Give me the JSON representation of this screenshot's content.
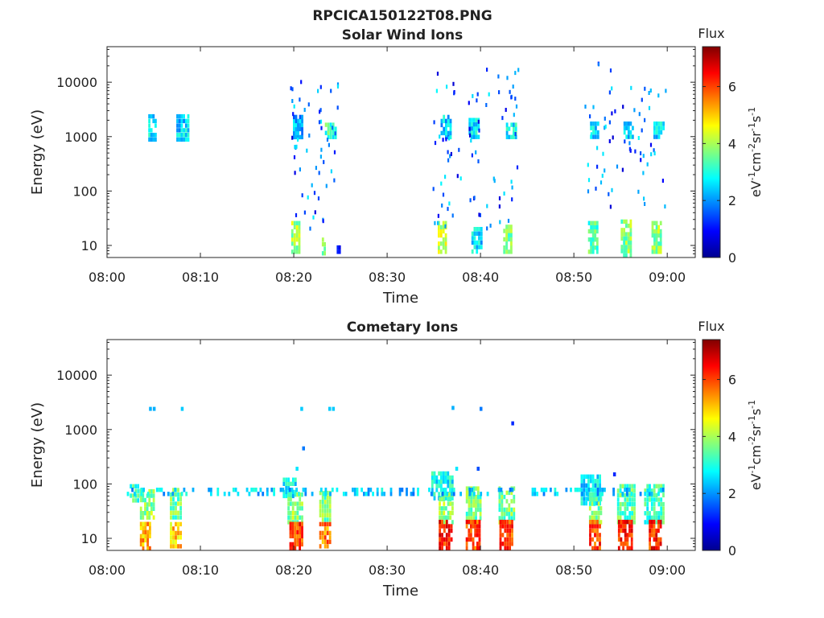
{
  "figure_title": "RPCICA150122T08.PNG",
  "chart_data": [
    {
      "type": "heatmap",
      "title": "Solar Wind Ions",
      "xlabel": "Time",
      "ylabel": "Energy (eV)",
      "y_scale": "log",
      "ylim": [
        6,
        45000
      ],
      "xlim": [
        0,
        63
      ],
      "x_ticks": [
        "08:00",
        "08:10",
        "08:20",
        "08:30",
        "08:40",
        "08:50",
        "09:00"
      ],
      "y_ticks": [
        "10",
        "100",
        "1000",
        "10000"
      ],
      "colorbar": {
        "title": "Flux",
        "unit_parts": [
          "eV",
          "-1",
          "cm",
          "-2",
          "sr",
          "-1",
          "s",
          "-1"
        ],
        "range": [
          0,
          7.4
        ],
        "ticks": [
          "0",
          "2",
          "4",
          "6"
        ]
      },
      "blobs": [
        {
          "t0": 4.3,
          "t1": 5.2,
          "e0": 800,
          "e1": 2600,
          "v": 2.5
        },
        {
          "t0": 7.3,
          "t1": 8.7,
          "e0": 800,
          "e1": 2600,
          "v": 2.5
        },
        {
          "t0": 19.8,
          "t1": 20.9,
          "e0": 900,
          "e1": 2500,
          "v": 2.2
        },
        {
          "t0": 23.2,
          "t1": 24.5,
          "e0": 900,
          "e1": 1800,
          "v": 3.2
        },
        {
          "t0": 35.6,
          "t1": 36.8,
          "e0": 900,
          "e1": 2500,
          "v": 2.4
        },
        {
          "t0": 38.6,
          "t1": 39.8,
          "e0": 900,
          "e1": 2200,
          "v": 2.6
        },
        {
          "t0": 42.6,
          "t1": 43.8,
          "e0": 900,
          "e1": 1800,
          "v": 2.8
        },
        {
          "t0": 51.6,
          "t1": 52.6,
          "e0": 900,
          "e1": 1900,
          "v": 2.6
        },
        {
          "t0": 55.2,
          "t1": 56.3,
          "e0": 900,
          "e1": 1900,
          "v": 2.6
        },
        {
          "t0": 58.4,
          "t1": 59.6,
          "e0": 900,
          "e1": 1900,
          "v": 2.6
        },
        {
          "t0": 19.6,
          "t1": 20.6,
          "e0": 7,
          "e1": 28,
          "v": 4.0
        },
        {
          "t0": 22.9,
          "t1": 23.3,
          "e0": 6.5,
          "e1": 14,
          "v": 3.5
        },
        {
          "t0": 24.5,
          "t1": 24.9,
          "e0": 7,
          "e1": 10,
          "v": 1.0
        },
        {
          "t0": 35.3,
          "t1": 36.3,
          "e0": 7,
          "e1": 28,
          "v": 4.2
        },
        {
          "t0": 38.9,
          "t1": 40.1,
          "e0": 7,
          "e1": 22,
          "v": 2.5
        },
        {
          "t0": 42.3,
          "t1": 43.3,
          "e0": 7,
          "e1": 24,
          "v": 3.6
        },
        {
          "t0": 51.4,
          "t1": 52.5,
          "e0": 7,
          "e1": 28,
          "v": 3.4
        },
        {
          "t0": 54.9,
          "t1": 56.1,
          "e0": 6,
          "e1": 30,
          "v": 3.8
        },
        {
          "t0": 58.2,
          "t1": 59.3,
          "e0": 7,
          "e1": 28,
          "v": 3.8
        }
      ],
      "scatter": [
        {
          "t0": 19.6,
          "t1": 24.8,
          "e0": 20,
          "e1": 12000,
          "n": 55
        },
        {
          "t0": 34.8,
          "t1": 44.0,
          "e0": 20,
          "e1": 21000,
          "n": 80
        },
        {
          "t0": 50.8,
          "t1": 59.8,
          "e0": 50,
          "e1": 22000,
          "n": 65
        }
      ]
    },
    {
      "type": "heatmap",
      "title": "Cometary Ions",
      "xlabel": "Time",
      "ylabel": "Energy (eV)",
      "y_scale": "log",
      "ylim": [
        6,
        45000
      ],
      "xlim": [
        0,
        63
      ],
      "x_ticks": [
        "08:00",
        "08:10",
        "08:20",
        "08:30",
        "08:40",
        "08:50",
        "09:00"
      ],
      "y_ticks": [
        "10",
        "100",
        "1000",
        "10000"
      ],
      "colorbar": {
        "title": "Flux",
        "unit_parts": [
          "eV",
          "-1",
          "cm",
          "-2",
          "sr",
          "-1",
          "s",
          "-1"
        ],
        "range": [
          0,
          7.4
        ],
        "ticks": [
          "0",
          "2",
          "4",
          "6"
        ]
      },
      "blobs": [
        {
          "t0": 2.3,
          "t1": 3.6,
          "e0": 45,
          "e1": 100,
          "v": 3.2
        },
        {
          "t0": 3.4,
          "t1": 5.0,
          "e0": 22,
          "e1": 80,
          "v": 3.8
        },
        {
          "t0": 3.4,
          "t1": 4.6,
          "e0": 6,
          "e1": 20,
          "v": 5.2
        },
        {
          "t0": 6.6,
          "t1": 7.9,
          "e0": 22,
          "e1": 85,
          "v": 3.6
        },
        {
          "t0": 6.6,
          "t1": 7.9,
          "e0": 6.5,
          "e1": 20,
          "v": 5.0
        },
        {
          "t0": 18.7,
          "t1": 20.2,
          "e0": 55,
          "e1": 130,
          "v": 2.8
        },
        {
          "t0": 19.2,
          "t1": 20.9,
          "e0": 18,
          "e1": 70,
          "v": 3.8
        },
        {
          "t0": 19.4,
          "t1": 20.9,
          "e0": 6,
          "e1": 20,
          "v": 6.0
        },
        {
          "t0": 22.6,
          "t1": 23.9,
          "e0": 20,
          "e1": 75,
          "v": 3.6
        },
        {
          "t0": 22.6,
          "t1": 23.9,
          "e0": 6.5,
          "e1": 20,
          "v": 5.6
        },
        {
          "t0": 34.6,
          "t1": 37.0,
          "e0": 50,
          "e1": 170,
          "v": 2.8
        },
        {
          "t0": 35.4,
          "t1": 37.0,
          "e0": 18,
          "e1": 70,
          "v": 3.8
        },
        {
          "t0": 35.4,
          "t1": 36.9,
          "e0": 6,
          "e1": 22,
          "v": 6.2
        },
        {
          "t0": 38.3,
          "t1": 40.0,
          "e0": 18,
          "e1": 90,
          "v": 3.6
        },
        {
          "t0": 38.3,
          "t1": 39.9,
          "e0": 6,
          "e1": 22,
          "v": 6.0
        },
        {
          "t0": 41.8,
          "t1": 43.6,
          "e0": 18,
          "e1": 90,
          "v": 3.6
        },
        {
          "t0": 41.9,
          "t1": 43.4,
          "e0": 6,
          "e1": 22,
          "v": 6.0
        },
        {
          "t0": 50.6,
          "t1": 52.8,
          "e0": 40,
          "e1": 150,
          "v": 2.6
        },
        {
          "t0": 51.5,
          "t1": 52.9,
          "e0": 18,
          "e1": 70,
          "v": 3.6
        },
        {
          "t0": 51.5,
          "t1": 52.8,
          "e0": 6,
          "e1": 22,
          "v": 6.0
        },
        {
          "t0": 54.5,
          "t1": 56.5,
          "e0": 18,
          "e1": 100,
          "v": 3.4
        },
        {
          "t0": 54.6,
          "t1": 56.2,
          "e0": 6,
          "e1": 22,
          "v": 6.2
        },
        {
          "t0": 57.4,
          "t1": 59.6,
          "e0": 18,
          "e1": 100,
          "v": 3.2
        },
        {
          "t0": 57.9,
          "t1": 59.3,
          "e0": 6,
          "e1": 22,
          "v": 6.2
        },
        {
          "t0": 2.0,
          "t1": 59.8,
          "e0": 60,
          "e1": 85,
          "v": 2.4,
          "sparse": true
        }
      ],
      "points": [
        {
          "t": 4.5,
          "e": 2400,
          "v": 2.2
        },
        {
          "t": 4.9,
          "e": 2400,
          "v": 2.2
        },
        {
          "t": 7.9,
          "e": 2400,
          "v": 2.4
        },
        {
          "t": 20.7,
          "e": 2400,
          "v": 2.4
        },
        {
          "t": 23.7,
          "e": 2400,
          "v": 2.4
        },
        {
          "t": 24.1,
          "e": 2400,
          "v": 2.4
        },
        {
          "t": 36.9,
          "e": 2500,
          "v": 2.2
        },
        {
          "t": 39.9,
          "e": 2400,
          "v": 1.8
        },
        {
          "t": 43.3,
          "e": 1300,
          "v": 1.2
        },
        {
          "t": 20.9,
          "e": 450,
          "v": 1.8
        },
        {
          "t": 20.2,
          "e": 190,
          "v": 2.6
        },
        {
          "t": 37.3,
          "e": 190,
          "v": 2.6
        },
        {
          "t": 39.6,
          "e": 190,
          "v": 1.5
        },
        {
          "t": 54.2,
          "e": 150,
          "v": 1.2
        }
      ]
    }
  ]
}
